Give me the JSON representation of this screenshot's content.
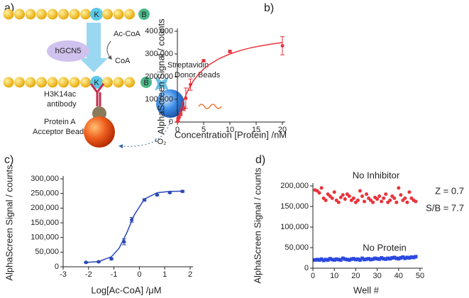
{
  "diagram": {
    "panel_label": "a)",
    "lysine": "K",
    "biotin": "B",
    "cofactor": "Ac-CoA",
    "enzyme": "hGCN5",
    "product": "CoA",
    "lysine_2": "K",
    "biotin_2": "B",
    "donor_label": [
      "Streptavidin",
      "Donor Beads"
    ],
    "antibody_label": [
      "H3K14ac",
      "antibody"
    ],
    "acceptor_label": [
      "Protein A",
      "Acceptor Beads"
    ],
    "singlet_oxygen": "¹O₂"
  },
  "chart_data": [
    {
      "type": "scatter",
      "panel_label": "b)",
      "xlabel": "Concentration [Protein] /nM",
      "ylabel": "AlphaScreen Signal / counts",
      "xlim": [
        0,
        20
      ],
      "xticks": [
        0,
        5,
        10,
        15,
        20
      ],
      "ylim": [
        0,
        400000
      ],
      "yticks": [
        0,
        {
          "value": 100000,
          "label": "100,000"
        },
        {
          "value": 200000,
          "label": "200,000"
        },
        {
          "value": 300000,
          "label": "300,000"
        },
        {
          "value": 400000,
          "label": "400,000"
        }
      ],
      "series": [
        {
          "color": "#e8343c",
          "x": [
            0.08,
            0.16,
            0.31,
            0.63,
            1.25,
            1.6,
            2.5,
            5,
            10,
            20
          ],
          "values": [
            3000,
            15000,
            22000,
            35000,
            60000,
            105000,
            165000,
            270000,
            311000,
            336000
          ],
          "errors": [
            2000,
            3000,
            4000,
            6000,
            10000,
            45000,
            25000,
            5000,
            5000,
            40000
          ]
        },
        {
          "style": "line",
          "color": "#e8343c",
          "x": [
            0,
            0.5,
            1,
            2,
            3,
            4,
            5,
            6,
            8,
            10,
            12,
            14,
            16,
            18,
            20
          ],
          "values": [
            0,
            46667,
            84000,
            140000,
            180000,
            210000,
            233333,
            252000,
            280000,
            300000,
            315000,
            327273,
            336000,
            343636,
            350000
          ]
        }
      ]
    },
    {
      "type": "scatter",
      "panel_label": "c)",
      "xlabel": "Log[Ac-CoA] /μM",
      "ylabel": "AlphaScreen Signal / counts",
      "xlim": [
        -3,
        2
      ],
      "xticks": [
        -3,
        -2,
        -1,
        0,
        1,
        2
      ],
      "ylim": [
        0,
        300000
      ],
      "yticks": [
        0,
        {
          "value": 50000,
          "label": "50,000"
        },
        {
          "value": 100000,
          "label": "100,000"
        },
        {
          "value": 150000,
          "label": "150,000"
        },
        {
          "value": 200000,
          "label": "200,000"
        },
        {
          "value": 250000,
          "label": "250,000"
        },
        {
          "value": 300000,
          "label": "300,000"
        }
      ],
      "series": [
        {
          "color": "#2a48b8",
          "x": [
            -2.1,
            -1.6,
            -1.1,
            -0.6,
            -0.3,
            0.2,
            0.7,
            1.2,
            1.7
          ],
          "values": [
            15000,
            17000,
            27000,
            85000,
            160000,
            228000,
            245000,
            253000,
            257000
          ],
          "errors": [
            2000,
            2000,
            3000,
            10000,
            8000,
            4000,
            3000,
            3000,
            3000
          ]
        },
        {
          "style": "line",
          "color": "#2a48b8",
          "x": [
            -2.1,
            -1.6,
            -1.1,
            -0.8,
            -0.5,
            -0.2,
            0.2,
            0.7,
            1.2,
            1.7
          ],
          "values": [
            14700,
            17800,
            34000,
            63000,
            115000,
            176700,
            230700,
            252700,
            256900,
            257700
          ]
        }
      ]
    },
    {
      "type": "scatter",
      "panel_label": "d)",
      "xlabel": "Well #",
      "ylabel": "AlphaScreen Signal / counts",
      "xlim": [
        0,
        50
      ],
      "xticks": [
        0,
        10,
        20,
        30,
        40,
        50
      ],
      "ylim": [
        0,
        200000
      ],
      "yticks": [
        0,
        {
          "value": 50000,
          "label": "50,000"
        },
        {
          "value": 100000,
          "label": "100,000"
        },
        {
          "value": 150000,
          "label": "150,000"
        },
        {
          "value": 200000,
          "label": "200,000"
        }
      ],
      "annotations": [
        "Z = 0.7",
        "S/B = 7.7"
      ],
      "series": [
        {
          "name": "No Inhibitor",
          "marker": "circle",
          "color": "#e8343c",
          "x": [
            1,
            2,
            3,
            4,
            5,
            6,
            7,
            8,
            9,
            10,
            11,
            12,
            13,
            14,
            15,
            16,
            17,
            18,
            19,
            20,
            21,
            22,
            23,
            24,
            25,
            26,
            27,
            28,
            29,
            30,
            31,
            32,
            33,
            34,
            35,
            36,
            37,
            38,
            39,
            40,
            41,
            42,
            43,
            44,
            45,
            46,
            47,
            48
          ],
          "values": [
            190000,
            188000,
            183000,
            195000,
            170000,
            165000,
            180000,
            175000,
            170000,
            185000,
            165000,
            160000,
            172000,
            178000,
            168000,
            180000,
            175000,
            165000,
            170000,
            160000,
            165000,
            188000,
            175000,
            162000,
            180000,
            170000,
            165000,
            160000,
            172000,
            168000,
            175000,
            162000,
            170000,
            180000,
            160000,
            165000,
            175000,
            170000,
            160000,
            195000,
            178000,
            165000,
            170000,
            160000,
            185000,
            170000,
            165000,
            162000
          ]
        },
        {
          "name": "No Protein",
          "marker": "square",
          "color": "#2a48e0",
          "x": [
            1,
            2,
            3,
            4,
            5,
            6,
            7,
            8,
            9,
            10,
            11,
            12,
            13,
            14,
            15,
            16,
            17,
            18,
            19,
            20,
            21,
            22,
            23,
            24,
            25,
            26,
            27,
            28,
            29,
            30,
            31,
            32,
            33,
            34,
            35,
            36,
            37,
            38,
            39,
            40,
            41,
            42,
            43,
            44,
            45,
            46,
            47,
            48
          ],
          "values": [
            20000,
            21000,
            20000,
            22000,
            19000,
            21000,
            20000,
            23000,
            21000,
            20000,
            22000,
            21000,
            20000,
            24000,
            22000,
            21000,
            20000,
            22000,
            23000,
            21000,
            22000,
            20000,
            24000,
            21000,
            22000,
            23000,
            21000,
            22000,
            24000,
            23000,
            22000,
            25000,
            23000,
            22000,
            24000,
            23000,
            25000,
            26000,
            24000,
            23000,
            25000,
            27000,
            24000,
            26000,
            25000,
            27000,
            26000,
            28000
          ]
        }
      ]
    }
  ]
}
